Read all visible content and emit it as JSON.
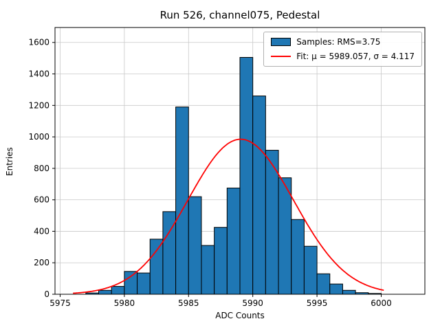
{
  "figure": {
    "title": "Run 526, channel075, Pedestal",
    "xlabel": "ADC Counts",
    "ylabel": "Entries"
  },
  "legend": {
    "samples_label": "Samples: RMS=3.75",
    "fit_label": "Fit: μ = 5989.057, σ = 4.117"
  },
  "chart_data": {
    "type": "bar",
    "subtype": "histogram",
    "title": "Run 526, channel075, Pedestal",
    "xlabel": "ADC Counts",
    "ylabel": "Entries",
    "grid": true,
    "legend_position": "upper right",
    "legend_entries": [
      "Samples: RMS=3.75",
      "Fit: μ = 5989.057, σ = 4.117"
    ],
    "xlim": [
      5974.6,
      6003.4
    ],
    "ylim": [
      0,
      1695
    ],
    "x_ticks": [
      5975,
      5980,
      5985,
      5990,
      5995,
      6000
    ],
    "y_ticks": [
      0,
      200,
      400,
      600,
      800,
      1000,
      1200,
      1400,
      1600
    ],
    "bin_width": 1,
    "bins_left_edges": [
      5977,
      5978,
      5979,
      5980,
      5981,
      5982,
      5983,
      5984,
      5985,
      5986,
      5987,
      5988,
      5989,
      5990,
      5991,
      5992,
      5993,
      5994,
      5995,
      5996,
      5997,
      5998,
      5999
    ],
    "values": [
      8,
      25,
      50,
      145,
      135,
      350,
      525,
      1190,
      620,
      310,
      425,
      675,
      1505,
      1260,
      915,
      740,
      475,
      305,
      130,
      65,
      25,
      10,
      5
    ],
    "series_color": "#1f77b4",
    "bar_edge_color": "#000000",
    "grid_color": "#c8c8c8",
    "fit": {
      "type": "gaussian",
      "mu": 5989.057,
      "sigma": 4.117,
      "amplitude": 985,
      "color": "#ff0000",
      "x_range": [
        5976.0,
        6000.3
      ]
    }
  }
}
